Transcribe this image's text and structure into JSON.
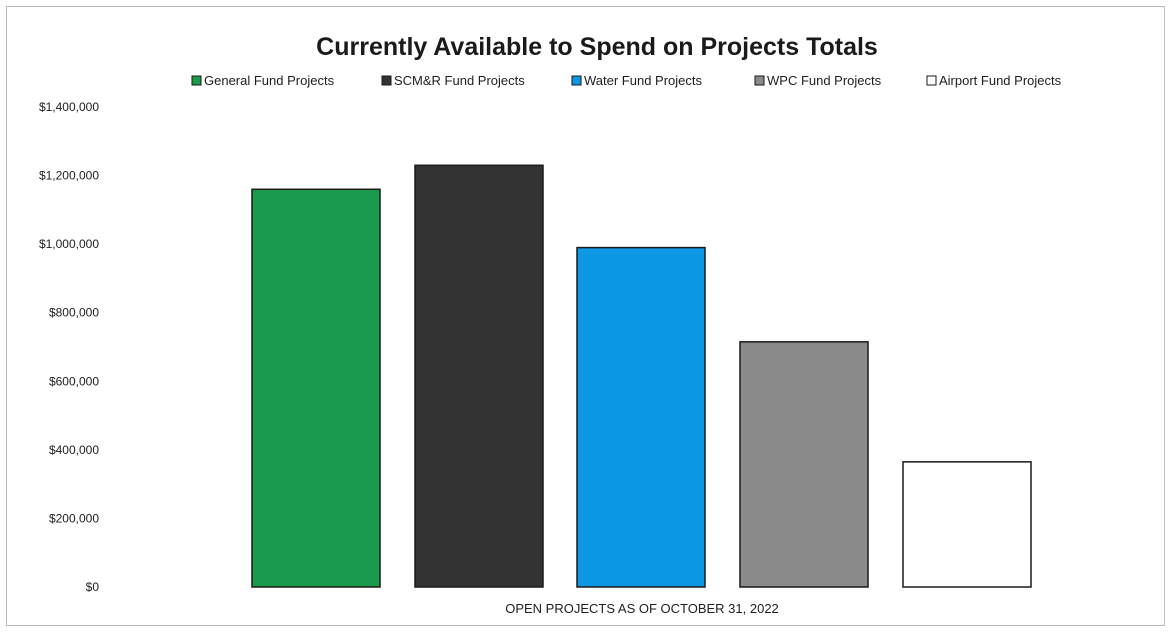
{
  "chart_data": {
    "type": "bar",
    "title": "Currently Available to Spend on Projects Totals",
    "xlabel": "OPEN PROJECTS AS OF OCTOBER 31, 2022",
    "ylabel": "",
    "ylim": [
      0,
      1400000
    ],
    "y_ticks": [
      0,
      200000,
      400000,
      600000,
      800000,
      1000000,
      1200000,
      1400000
    ],
    "y_tick_labels": [
      "$0",
      "$200,000",
      "$400,000",
      "$600,000",
      "$800,000",
      "$1,000,000",
      "$1,200,000",
      "$1,400,000"
    ],
    "grid": false,
    "legend_position": "top",
    "series": [
      {
        "name": "General Fund Projects",
        "value": 1160000,
        "color": "#1a9a4c"
      },
      {
        "name": "SCM&R Fund Projects",
        "value": 1230000,
        "color": "#333333"
      },
      {
        "name": "Water Fund Projects",
        "value": 990000,
        "color": "#0e97e4"
      },
      {
        "name": "WPC Fund Projects",
        "value": 715000,
        "color": "#8a8a8a"
      },
      {
        "name": "Airport Fund Projects",
        "value": 365000,
        "color": "#ffffff"
      }
    ]
  }
}
